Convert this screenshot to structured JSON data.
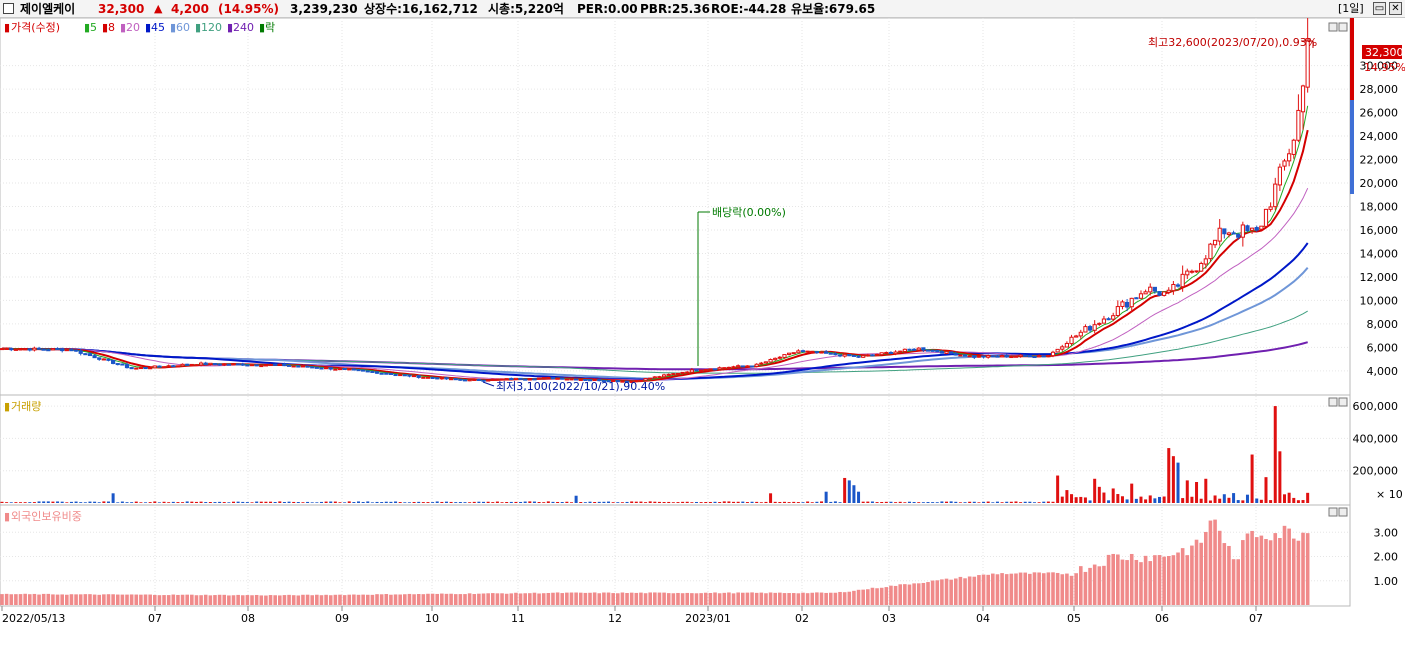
{
  "header": {
    "name": "제이엘케이",
    "price": "32,300",
    "arrow": "▲",
    "change": "4,200",
    "change_pct": "(14.95%)",
    "volume": "3,239,230",
    "listed": "상장수:16,162,712",
    "market_cap": "시총:5,220억",
    "per": "PER:0.00",
    "pbr": "PBR:25.36",
    "roe": "ROE:-44.28",
    "reserve": "유보율:679.65",
    "period": "[1일]",
    "min_icon": "minimize-icon",
    "close_icon": "close-icon"
  },
  "legend": {
    "price": "가격(수정)",
    "ma": [
      "5",
      "8",
      "20",
      "45",
      "60",
      "120",
      "240"
    ],
    "rak": "락",
    "volume": "거래량",
    "foreign": "외국인보유비중"
  },
  "colors": {
    "up": "#e01010",
    "down": "#1a56c8",
    "ma5": "#22aa22",
    "ma8": "#d40000",
    "ma20": "#c060c0",
    "ma45": "#0018c8",
    "ma60": "#6f96d8",
    "ma120": "#40a080",
    "ma240": "#7020b0",
    "foreign": "#f08a8a"
  },
  "annotations": {
    "high": "최고32,600(2023/07/20),0.93%",
    "low": "최저3,100(2022/10/21),90.40%",
    "dividend": "배당락(0.00%)",
    "price_tag": "32,300",
    "pct_tag": "14.95%",
    "vol_unit": "× 10"
  },
  "chart_data": [
    {
      "type": "candlestick",
      "series": [
        {
          "name": "가격(수정)"
        }
      ],
      "x_ticks": [
        "2022/05/13",
        "07",
        "08",
        "09",
        "10",
        "11",
        "12",
        "2023/01",
        "02",
        "03",
        "04",
        "05",
        "06",
        "07"
      ],
      "x_range": [
        "2022/05/13",
        "2023/07/20"
      ],
      "y_ticks": [
        "4,000",
        "6,000",
        "8,000",
        "10,000",
        "12,000",
        "14,000",
        "16,000",
        "18,000",
        "20,000",
        "22,000",
        "24,000",
        "26,000",
        "28,000",
        "30,000"
      ],
      "ylim": [
        2200,
        33800
      ],
      "anchor_closes": [
        [
          0,
          5900
        ],
        [
          15,
          5800
        ],
        [
          28,
          4200
        ],
        [
          42,
          4600
        ],
        [
          60,
          4500
        ],
        [
          75,
          4100
        ],
        [
          90,
          3500
        ],
        [
          100,
          3200
        ],
        [
          118,
          3400
        ],
        [
          136,
          3100
        ],
        [
          150,
          4100
        ],
        [
          163,
          4500
        ],
        [
          172,
          5700
        ],
        [
          185,
          5200
        ],
        [
          198,
          5900
        ],
        [
          210,
          5200
        ],
        [
          226,
          5300
        ],
        [
          232,
          7000
        ],
        [
          240,
          9000
        ],
        [
          247,
          11000
        ],
        [
          252,
          10500
        ],
        [
          258,
          13000
        ],
        [
          264,
          16000
        ],
        [
          271,
          15700
        ],
        [
          276,
          20500
        ],
        [
          279,
          24000
        ],
        [
          281,
          28100
        ],
        [
          282,
          32300
        ]
      ],
      "high": {
        "date": "2023/07/20",
        "value": 32600
      },
      "low": {
        "date": "2022/10/21",
        "value": 3100
      },
      "last_close": 32300
    },
    {
      "type": "bar",
      "series": [
        {
          "name": "거래량"
        }
      ],
      "y_ticks": [
        "200,000",
        "400,000",
        "600,000"
      ],
      "ylim": [
        0,
        650000
      ],
      "unit": "× 10",
      "spikes": [
        [
          24,
          60000
        ],
        [
          124,
          45000
        ],
        [
          166,
          60000
        ],
        [
          178,
          70000
        ],
        [
          182,
          155000
        ],
        [
          183,
          140000
        ],
        [
          184,
          110000
        ],
        [
          185,
          70000
        ],
        [
          228,
          170000
        ],
        [
          230,
          80000
        ],
        [
          236,
          150000
        ],
        [
          237,
          100000
        ],
        [
          240,
          90000
        ],
        [
          244,
          120000
        ],
        [
          252,
          340000
        ],
        [
          253,
          290000
        ],
        [
          254,
          250000
        ],
        [
          256,
          140000
        ],
        [
          258,
          130000
        ],
        [
          260,
          150000
        ],
        [
          270,
          300000
        ],
        [
          273,
          160000
        ],
        [
          275,
          600000
        ],
        [
          276,
          320000
        ]
      ]
    },
    {
      "type": "bar",
      "series": [
        {
          "name": "외국인보유비중"
        }
      ],
      "y_ticks": [
        "1.00",
        "2.00",
        "3.00"
      ],
      "ylim": [
        0,
        4.0
      ],
      "anchors": [
        [
          0,
          0.45
        ],
        [
          60,
          0.4
        ],
        [
          120,
          0.5
        ],
        [
          180,
          0.5
        ],
        [
          195,
          0.85
        ],
        [
          215,
          1.3
        ],
        [
          230,
          1.3
        ],
        [
          235,
          1.6
        ],
        [
          240,
          2.0
        ],
        [
          250,
          2.0
        ],
        [
          258,
          2.4
        ],
        [
          262,
          3.6
        ],
        [
          266,
          1.8
        ],
        [
          270,
          3.0
        ],
        [
          276,
          3.0
        ]
      ]
    }
  ]
}
